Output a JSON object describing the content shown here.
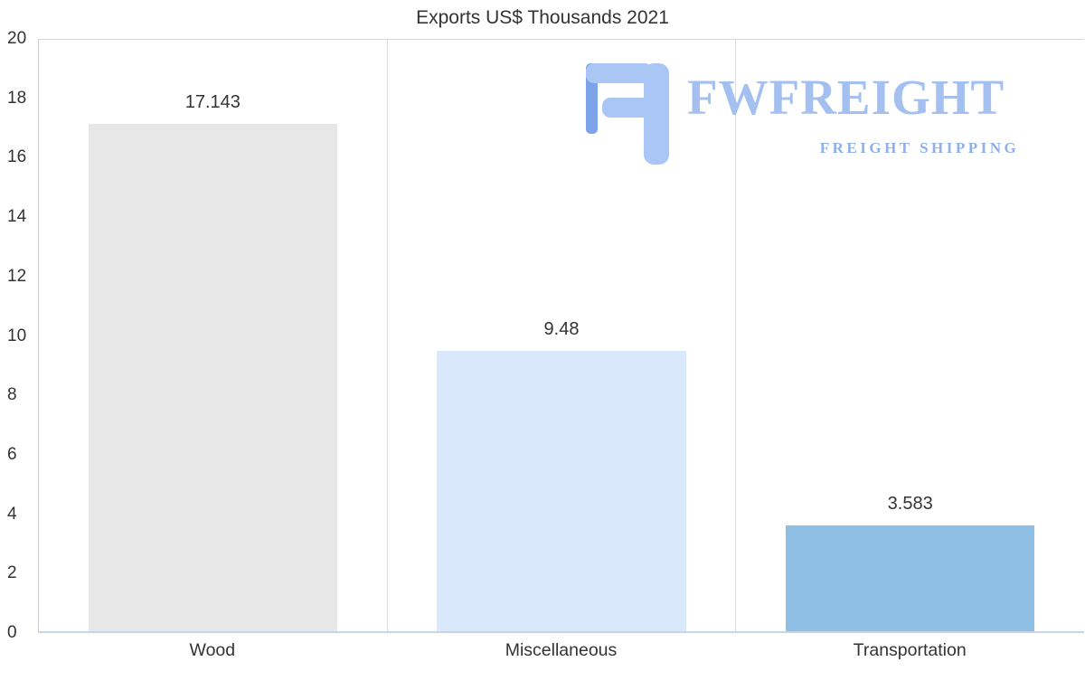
{
  "chart_data": {
    "type": "bar",
    "title": "Exports US$ Thousands 2021",
    "categories": [
      "Wood",
      "Miscellaneous",
      "Transportation"
    ],
    "values": [
      17.143,
      9.48,
      3.583
    ],
    "value_labels": [
      "17.143",
      "9.48",
      "3.583"
    ],
    "ylim": [
      0,
      20
    ],
    "ytick_step": 2,
    "ytick_labels": [
      "0",
      "2",
      "4",
      "6",
      "8",
      "10",
      "12",
      "14",
      "16",
      "18",
      "20"
    ],
    "bar_colors": [
      "#e7e7e7",
      "#d9e8fa",
      "#90bfe6"
    ],
    "grid": "vertical-between-categories-and-top-line",
    "legend": "none",
    "xlabel": "",
    "ylabel": ""
  },
  "logo": {
    "brand": "FWFREIGHT",
    "tagline": "FREIGHT SHIPPING",
    "icon": "stylized-F-mark",
    "color": "#a4c0f0"
  },
  "colors": {
    "background": "#ffffff",
    "text": "#333333",
    "gridline": "#dcdcdc",
    "axis_bottom": "#c3d7e9"
  }
}
